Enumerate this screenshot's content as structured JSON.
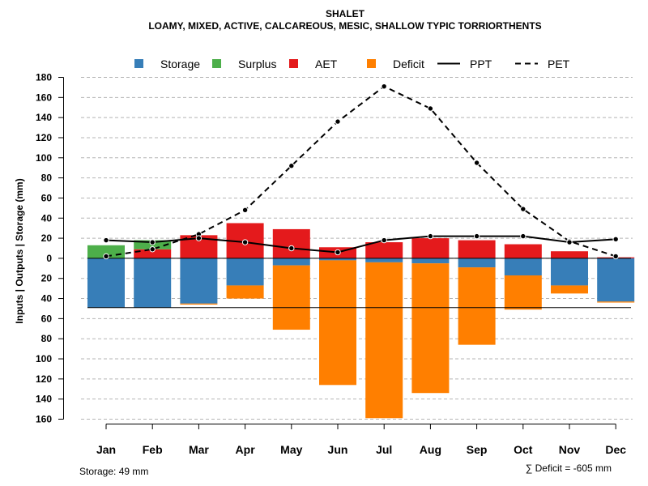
{
  "chart_data": {
    "type": "bar",
    "title": "SHALET",
    "subtitle": "LOAMY, MIXED, ACTIVE, CALCAREOUS, MESIC, SHALLOW TYPIC TORRIORTHENTS",
    "ylabel": "Inputs | Outputs | Storage    (mm)",
    "ylim": [
      -160,
      180
    ],
    "yticks": [
      180,
      160,
      140,
      120,
      100,
      80,
      60,
      40,
      20,
      0,
      -20,
      -40,
      -60,
      -80,
      -100,
      -120,
      -140,
      -160
    ],
    "ytick_labels": [
      "180",
      "160",
      "140",
      "120",
      "100",
      "80",
      "60",
      "40",
      "20",
      "0",
      "20",
      "40",
      "60",
      "80",
      "100",
      "120",
      "140",
      "160"
    ],
    "categories": [
      "Jan",
      "Feb",
      "Mar",
      "Apr",
      "May",
      "Jun",
      "Jul",
      "Aug",
      "Sep",
      "Oct",
      "Nov",
      "Dec"
    ],
    "legend": [
      {
        "name": "Storage",
        "kind": "box",
        "color": "#377eb8"
      },
      {
        "name": "Surplus",
        "kind": "box",
        "color": "#4daf4a"
      },
      {
        "name": "AET",
        "kind": "box",
        "color": "#e41a1c"
      },
      {
        "name": "Deficit",
        "kind": "box",
        "color": "#ff7f00"
      },
      {
        "name": "PPT",
        "kind": "solid",
        "color": "#000000"
      },
      {
        "name": "PET",
        "kind": "dashed",
        "color": "#000000"
      }
    ],
    "series": [
      {
        "name": "AET",
        "values": [
          0,
          9,
          23,
          35,
          29,
          11,
          16,
          20,
          18,
          14,
          7,
          1
        ]
      },
      {
        "name": "Surplus",
        "values": [
          13,
          9,
          0,
          0,
          0,
          0,
          0,
          0,
          0,
          0,
          0,
          0
        ]
      },
      {
        "name": "Storage",
        "values": [
          49,
          49,
          45,
          27,
          7,
          2,
          4,
          5,
          9,
          17,
          27,
          43
        ]
      },
      {
        "name": "Deficit",
        "values": [
          0,
          0,
          1,
          13,
          64,
          124,
          155,
          129,
          77,
          34,
          8,
          1
        ]
      },
      {
        "name": "PPT",
        "values": [
          18,
          16,
          20,
          16,
          10,
          6,
          18,
          22,
          22,
          22,
          16,
          19
        ]
      },
      {
        "name": "PET",
        "values": [
          2,
          9,
          24,
          48,
          92,
          136,
          171,
          149,
          95,
          49,
          17,
          2
        ]
      }
    ],
    "storage_capacity": 49,
    "storage_note": "Storage: 49 mm",
    "deficit_note": "∑ Deficit = -605 mm"
  }
}
